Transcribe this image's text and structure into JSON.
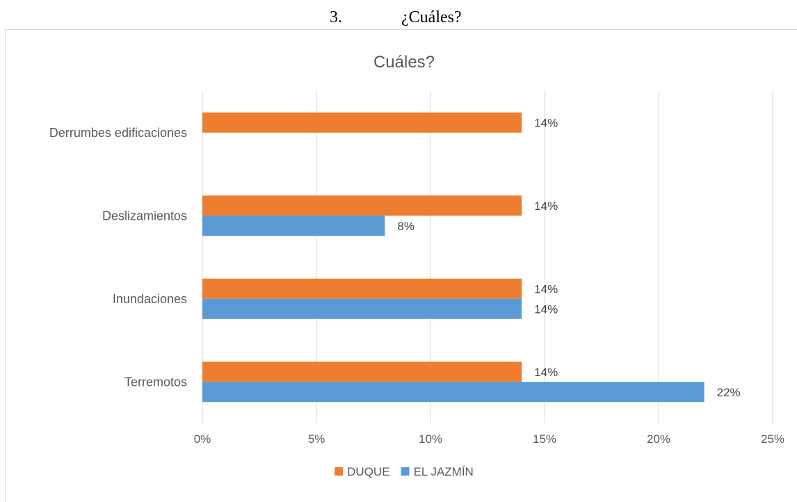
{
  "document": {
    "number": "3.",
    "question": "¿Cuáles?"
  },
  "chart_data": {
    "type": "bar",
    "orientation": "horizontal",
    "title": "Cuáles?",
    "xlabel": "",
    "ylabel": "",
    "categories": [
      "Derrumbes edificaciones",
      "Deslizamientos",
      "Inundaciones",
      "Terremotos"
    ],
    "series": [
      {
        "name": "DUQUE",
        "color": "#ED7D31",
        "values": [
          14,
          14,
          14,
          14
        ],
        "labels": [
          "14%",
          "14%",
          "14%",
          "14%"
        ]
      },
      {
        "name": "EL JAZMÍN",
        "color": "#5B9BD5",
        "values": [
          null,
          8,
          14,
          22
        ],
        "labels": [
          null,
          "8%",
          "14%",
          "22%"
        ]
      }
    ],
    "xlim": [
      0,
      25
    ],
    "xticks": [
      0,
      5,
      10,
      15,
      20,
      25
    ],
    "xtick_labels": [
      "0%",
      "5%",
      "10%",
      "15%",
      "20%",
      "25%"
    ],
    "grid": true,
    "legend": "bottom"
  }
}
